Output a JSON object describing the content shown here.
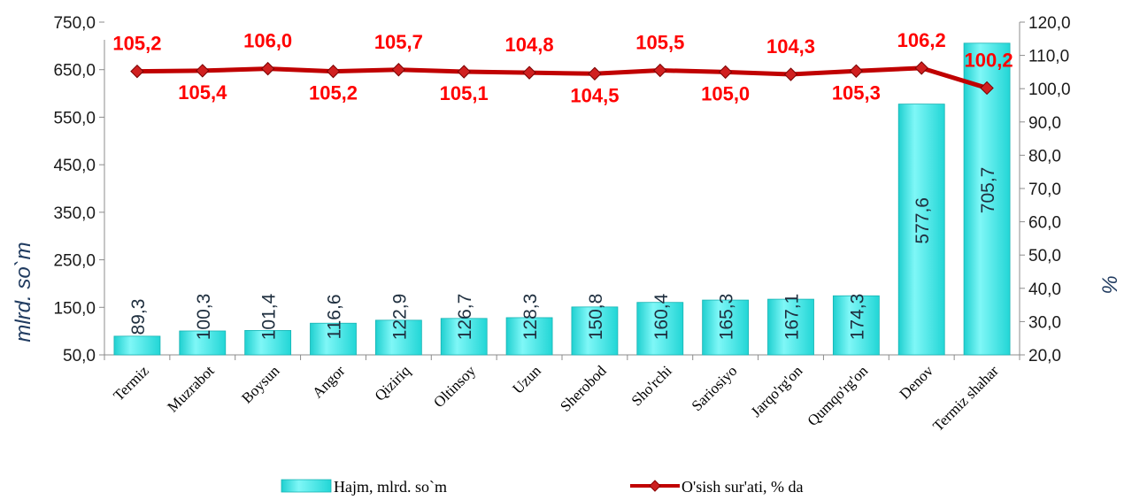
{
  "chart_data": {
    "type": "bar",
    "categories": [
      "Termiz",
      "Muzrabot",
      "Boysun",
      "Angor",
      "Qiziriq",
      "Oltinsoy",
      "Uzun",
      "Sherobod",
      "Sho'rchi",
      "Sariosiyo",
      "Jarqo'rg'on",
      "Qumqo'rg'on",
      "Denov",
      "Termiz shahar"
    ],
    "series": [
      {
        "name": "Hajm, mlrd. so`m",
        "type": "bar",
        "axis": "left",
        "color": "#33e6e6",
        "values": [
          89.3,
          100.3,
          101.4,
          116.6,
          122.9,
          126.7,
          128.3,
          150.8,
          160.4,
          165.3,
          167.1,
          174.3,
          577.6,
          705.7
        ],
        "labels": [
          "89,3",
          "100,3",
          "101,4",
          "116,6",
          "122,9",
          "126,7",
          "128,3",
          "150,8",
          "160,4",
          "165,3",
          "167,1",
          "174,3",
          "577,6",
          "705,7"
        ]
      },
      {
        "name": "O'sish sur'ati, % da",
        "type": "line",
        "axis": "right",
        "color": "#c00000",
        "values": [
          105.2,
          105.4,
          106.0,
          105.2,
          105.7,
          105.1,
          104.8,
          104.5,
          105.5,
          105.0,
          104.3,
          105.3,
          106.2,
          100.2
        ],
        "labels": [
          "105,2",
          "105,4",
          "106,0",
          "105,2",
          "105,7",
          "105,1",
          "104,8",
          "104,5",
          "105,5",
          "105,0",
          "104,3",
          "105,3",
          "106,2",
          "100,2"
        ]
      }
    ],
    "ylabel": "mlrd. so`m",
    "y2label": "%",
    "ylim": [
      50,
      750
    ],
    "y2lim": [
      20,
      120
    ],
    "y_ticks": [
      "50,0",
      "150,0",
      "250,0",
      "350,0",
      "450,0",
      "550,0",
      "650,0",
      "750,0"
    ],
    "y2_ticks": [
      "20,0",
      "30,0",
      "40,0",
      "50,0",
      "60,0",
      "70,0",
      "80,0",
      "90,0",
      "100,0",
      "110,0",
      "120,0"
    ],
    "grid": false,
    "legend": "bottom"
  }
}
